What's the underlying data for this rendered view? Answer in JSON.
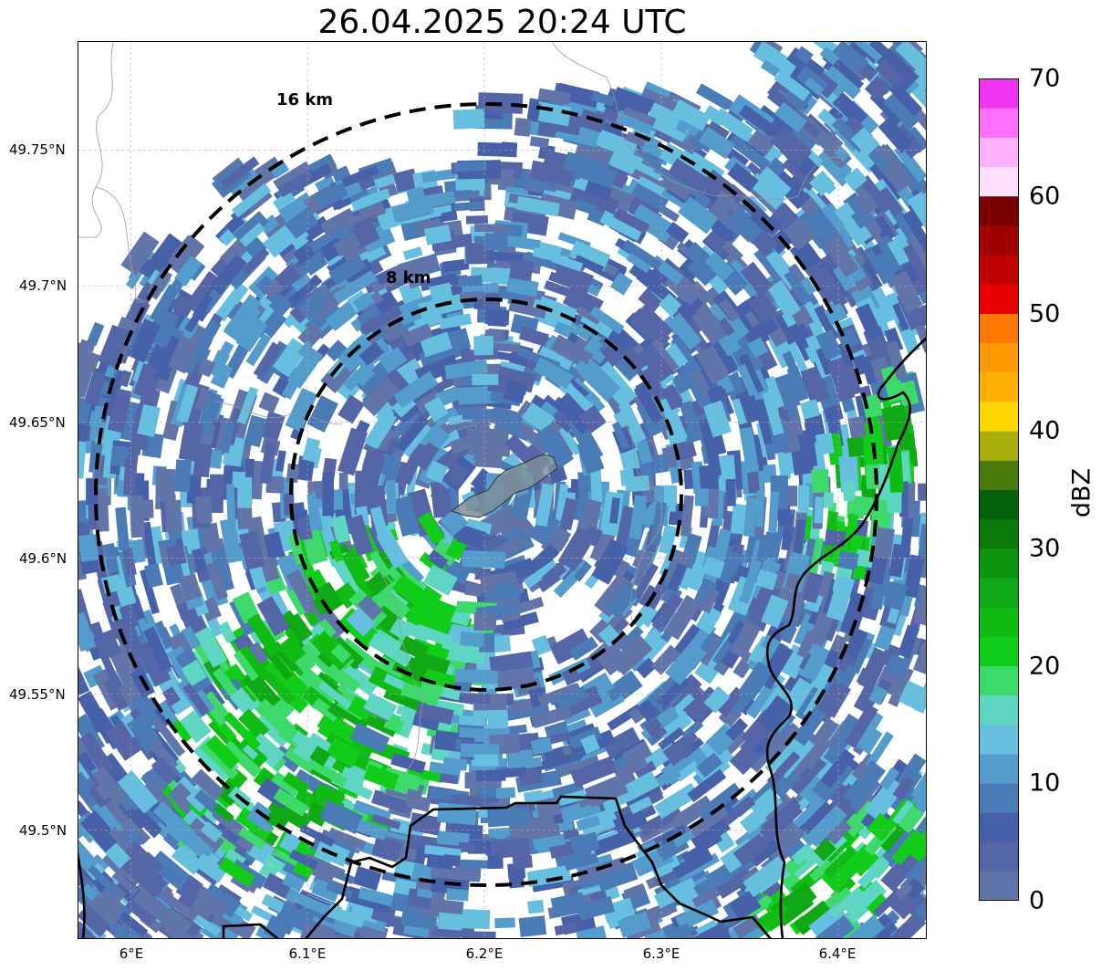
{
  "title": "26.04.2025 20:24 UTC",
  "map": {
    "lon_range": [
      5.97,
      6.45
    ],
    "lat_range": [
      49.46,
      49.79
    ],
    "lon_ticks": [
      {
        "value": 6.0,
        "label": "6°E"
      },
      {
        "value": 6.1,
        "label": "6.1°E"
      },
      {
        "value": 6.2,
        "label": "6.2°E"
      },
      {
        "value": 6.3,
        "label": "6.3°E"
      },
      {
        "value": 6.4,
        "label": "6.4°E"
      }
    ],
    "lat_ticks": [
      {
        "value": 49.75,
        "label": "49.75°N"
      },
      {
        "value": 49.7,
        "label": "49.7°N"
      },
      {
        "value": 49.65,
        "label": "49.65°N"
      },
      {
        "value": 49.6,
        "label": "49.6°N"
      },
      {
        "value": 49.55,
        "label": "49.55°N"
      },
      {
        "value": 49.5,
        "label": "49.5°N"
      }
    ],
    "gridlines": true,
    "radar_center": {
      "lon": 6.203,
      "lat": 49.623
    },
    "range_rings": [
      {
        "radius_km": 8,
        "label": "8 km"
      },
      {
        "radius_km": 16,
        "label": "16 km"
      }
    ]
  },
  "colorbar": {
    "unit": "dBZ",
    "min": 0,
    "max": 70,
    "tick_labels": [
      "0",
      "10",
      "20",
      "30",
      "40",
      "50",
      "60",
      "70"
    ],
    "colors": [
      "#6275a9",
      "#5566a6",
      "#4661a8",
      "#4a7bb4",
      "#549ccb",
      "#66bfdf",
      "#5fd6c2",
      "#3ed96b",
      "#12cc1a",
      "#10bb14",
      "#10a814",
      "#0e9510",
      "#0a7a0a",
      "#06620a",
      "#4a7a0a",
      "#aaae0a",
      "#ffd700",
      "#ffb000",
      "#ff9900",
      "#ff7700",
      "#e60000",
      "#c00000",
      "#a00000",
      "#7a0000",
      "#ffe0ff",
      "#ffb0ff",
      "#ff70ff",
      "#f035f0"
    ]
  }
}
